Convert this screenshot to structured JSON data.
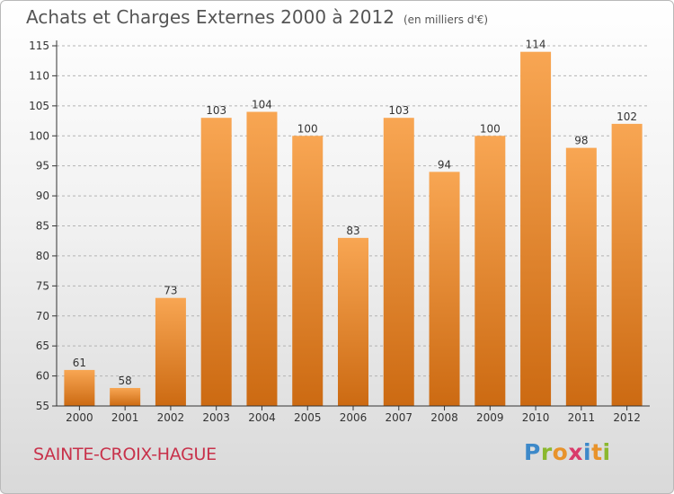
{
  "header": {
    "title": "Achats et Charges Externes 2000 à 2012",
    "unit": "(en milliers d'€)"
  },
  "footer": {
    "commune": "SAINTE-CROIX-HAGUE",
    "logo": "Proxiti"
  },
  "colors": {
    "bar_light": "#f8a653",
    "bar_dark": "#cc6a12",
    "axis": "#333333",
    "grid": "#b3b3b3",
    "commune_text": "#c8314a"
  },
  "chart_data": {
    "type": "bar",
    "title": "Achats et Charges Externes 2000 à 2012",
    "subtitle": "(en milliers d'€)",
    "xlabel": "",
    "ylabel": "",
    "categories": [
      "2000",
      "2001",
      "2002",
      "2003",
      "2004",
      "2005",
      "2006",
      "2007",
      "2008",
      "2009",
      "2010",
      "2011",
      "2012"
    ],
    "values": [
      61,
      58,
      73,
      103,
      104,
      100,
      83,
      103,
      94,
      100,
      114,
      98,
      102
    ],
    "ylim": [
      55,
      115
    ],
    "yticks": [
      55,
      60,
      65,
      70,
      75,
      80,
      85,
      90,
      95,
      100,
      105,
      110,
      115
    ],
    "grid": "horizontal dashed",
    "data_labels": true
  }
}
